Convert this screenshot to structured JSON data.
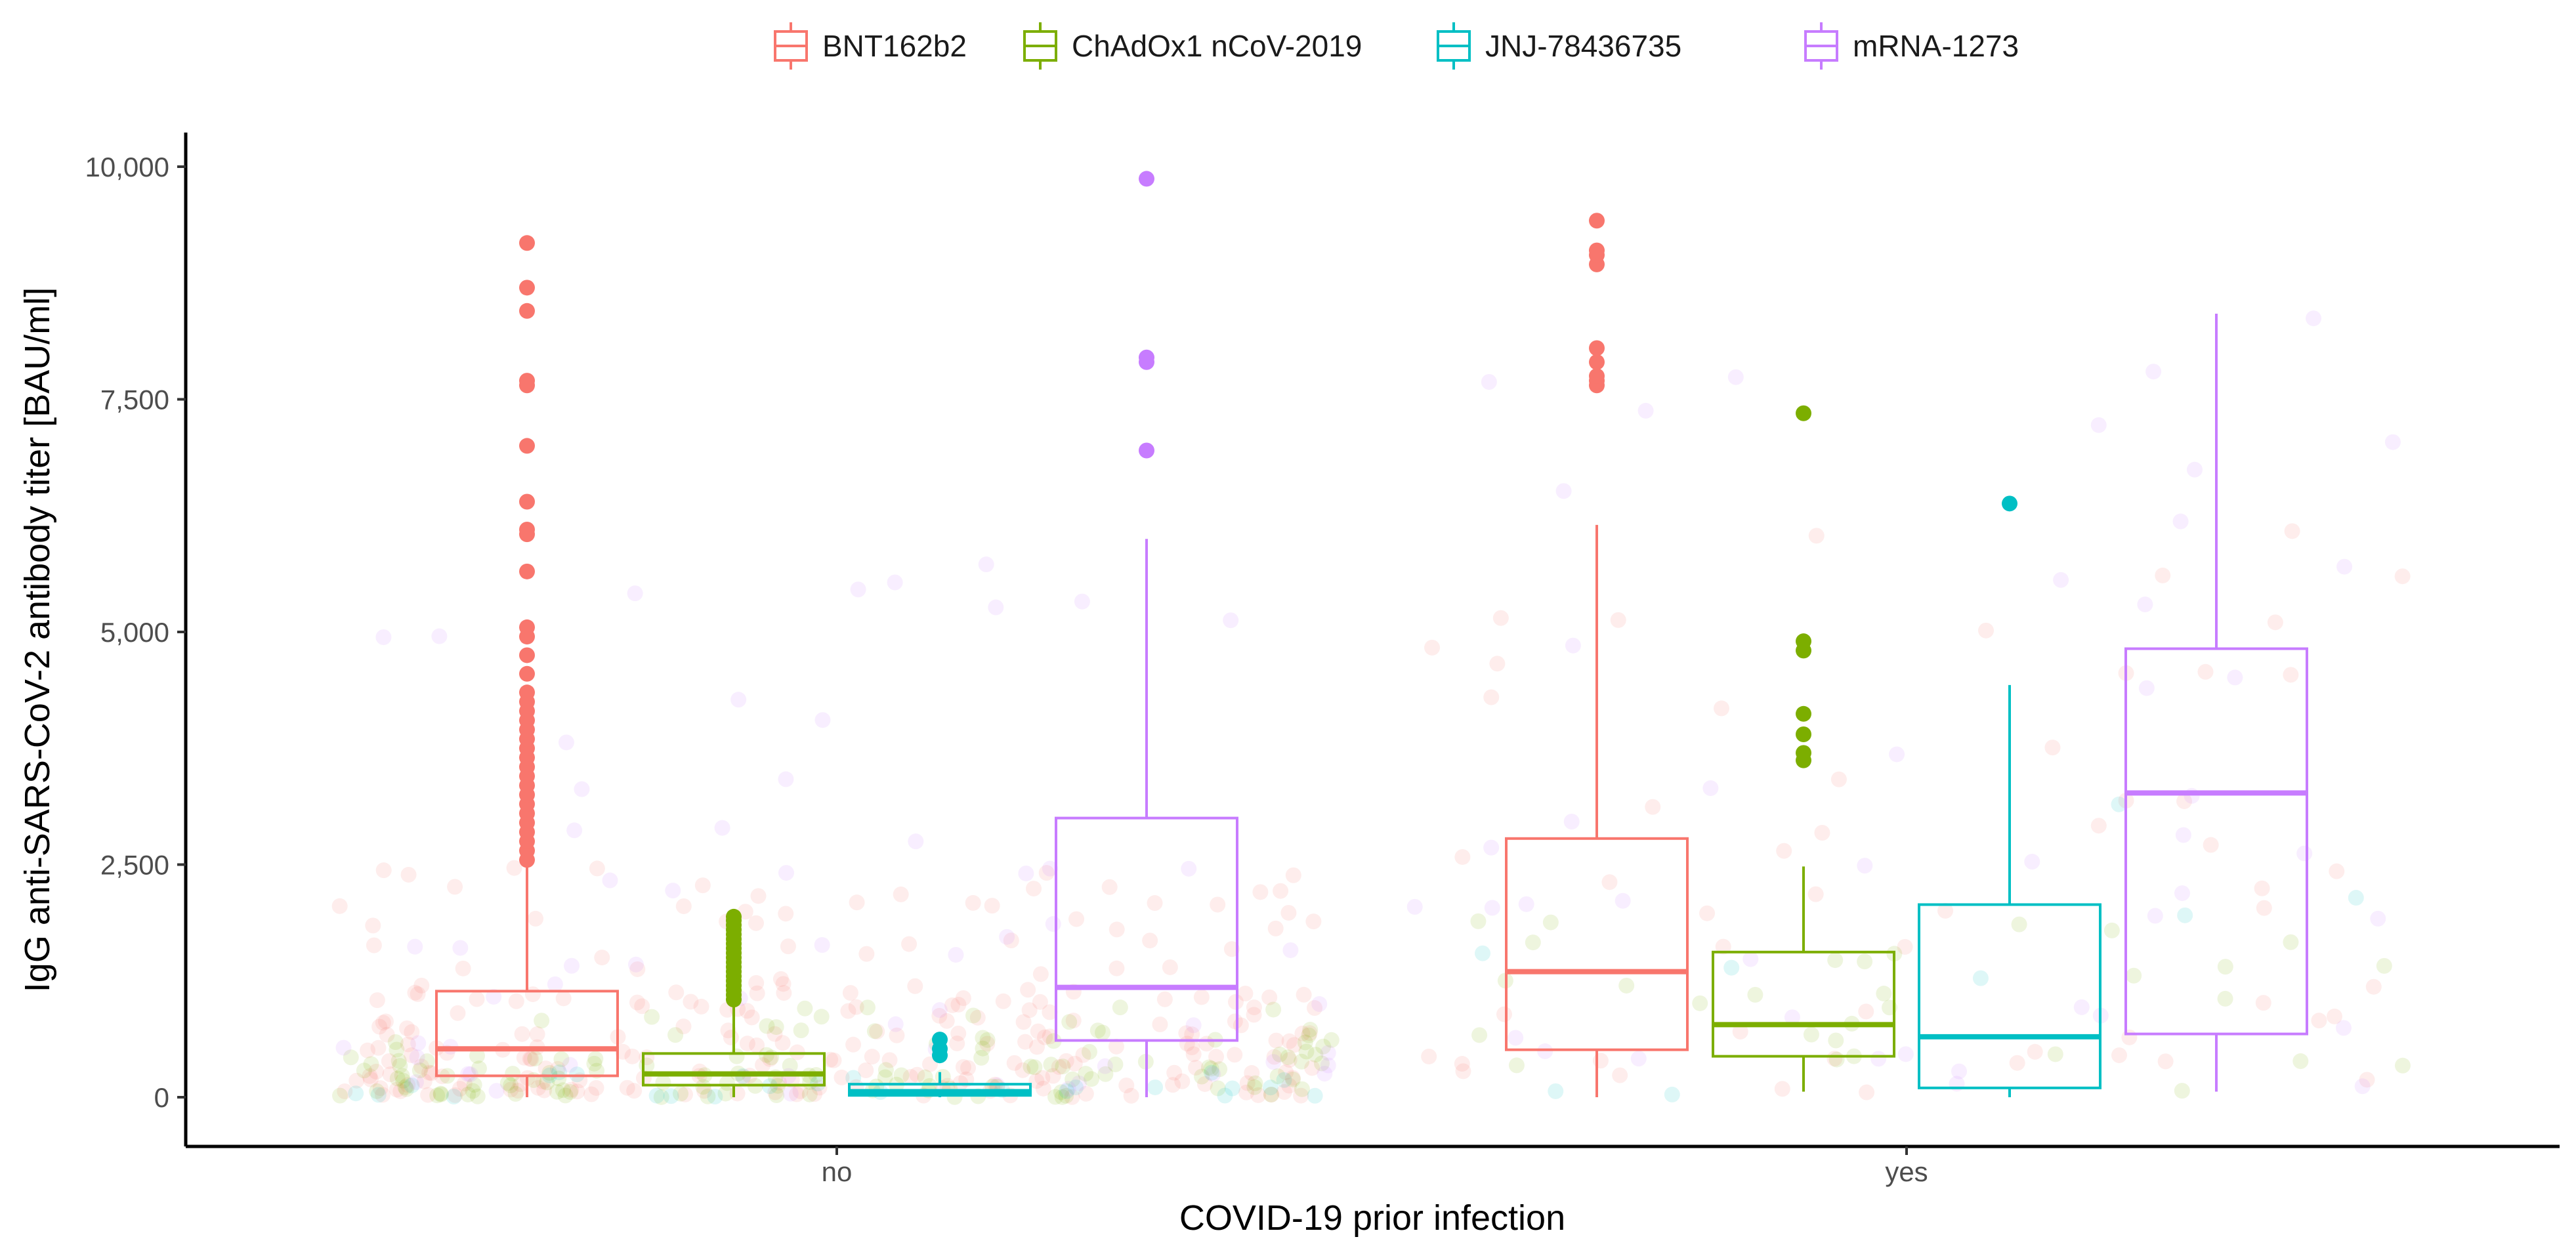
{
  "chart_data": {
    "type": "boxplot",
    "title": "",
    "xlabel": "COVID-19 prior infection",
    "ylabel": "IgG anti-SARS-CoV-2 antibody titer [BAU/ml]",
    "ylim": [
      -500,
      10350
    ],
    "yticks": [
      0,
      2500,
      5000,
      7500,
      10000
    ],
    "ytick_labels": [
      "0",
      "2,500",
      "5,000",
      "7,500",
      "10,000"
    ],
    "categories": [
      "no",
      "yes"
    ],
    "legend_position": "top",
    "series": [
      {
        "name": "BNT162b2",
        "color": "#F8766D",
        "boxes": [
          {
            "group": "no",
            "whisker_low": 0,
            "q1": 230,
            "median": 520,
            "q3": 1140,
            "whisker_high": 2500,
            "outliers": [
              2550,
              2650,
              2750,
              2850,
              2950,
              3050,
              3150,
              3250,
              3350,
              3450,
              3550,
              3650,
              3750,
              3850,
              3950,
              4050,
              4150,
              4250,
              4350,
              4550,
              4750,
              4950,
              5050,
              5650,
              6050,
              6100,
              6400,
              7000,
              7650,
              7700,
              8450,
              8700,
              9180
            ]
          },
          {
            "group": "yes",
            "whisker_low": 0,
            "q1": 510,
            "median": 1350,
            "q3": 2780,
            "whisker_high": 6150,
            "outliers": [
              7650,
              7700,
              7750,
              7900,
              8050,
              8950,
              9050,
              9100,
              9420
            ]
          }
        ]
      },
      {
        "name": "ChAdOx1 nCoV-2019",
        "color": "#7CAE00",
        "boxes": [
          {
            "group": "no",
            "whisker_low": 0,
            "q1": 130,
            "median": 250,
            "q3": 470,
            "whisker_high": 990,
            "outliers": [
              1050,
              1100,
              1150,
              1200,
              1250,
              1300,
              1350,
              1400,
              1450,
              1500,
              1550,
              1600,
              1650,
              1700,
              1750,
              1800,
              1850,
              1900,
              1940
            ]
          },
          {
            "group": "yes",
            "whisker_low": 60,
            "q1": 440,
            "median": 780,
            "q3": 1560,
            "whisker_high": 2480,
            "outliers": [
              3620,
              3700,
              3900,
              4120,
              4800,
              4900,
              7350
            ]
          }
        ]
      },
      {
        "name": "JNJ-78436735",
        "color": "#00BFC4",
        "boxes": [
          {
            "group": "no",
            "whisker_low": 0,
            "q1": 20,
            "median": 60,
            "q3": 140,
            "whisker_high": 270,
            "outliers": [
              450,
              520,
              620
            ]
          },
          {
            "group": "yes",
            "whisker_low": 0,
            "q1": 100,
            "median": 650,
            "q3": 2070,
            "whisker_high": 4430,
            "outliers": [
              6380
            ]
          }
        ]
      },
      {
        "name": "mRNA-1273",
        "color": "#C77CFF",
        "boxes": [
          {
            "group": "no",
            "whisker_low": 0,
            "q1": 610,
            "median": 1180,
            "q3": 3000,
            "whisker_high": 6000,
            "outliers": [
              6950,
              7900,
              7950,
              9870
            ]
          },
          {
            "group": "yes",
            "whisker_low": 60,
            "q1": 680,
            "median": 3270,
            "q3": 4820,
            "whisker_high": 8420,
            "outliers": []
          }
        ]
      }
    ]
  }
}
